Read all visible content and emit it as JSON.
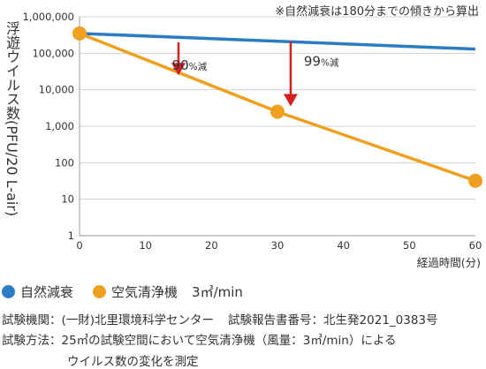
{
  "note": "※自然減衰は180分までの傾きから算出",
  "chart_data": {
    "type": "line",
    "x_ticks": [
      0,
      10,
      20,
      30,
      40,
      50,
      60
    ],
    "y_ticks": [
      1,
      10,
      100,
      1000,
      10000,
      100000,
      1000000
    ],
    "y_tick_labels": [
      "1",
      "10",
      "100",
      "1,000",
      "10,000",
      "100,000",
      "1,000,000"
    ],
    "y_scale": "log",
    "xlim": [
      0,
      60
    ],
    "ylim": [
      1,
      1000000
    ],
    "xlabel": "経過時間(分)",
    "ylabel": "浮遊ウイルス数(PFU/20 L-air)",
    "grid": "horizontal",
    "series": [
      {
        "name": "自然減衰",
        "color": "#2b7cc4",
        "x": [
          0,
          60
        ],
        "y": [
          350000,
          130000
        ]
      },
      {
        "name": "空気清浄機",
        "color": "#f0a020",
        "x": [
          0,
          30,
          60
        ],
        "y": [
          350000,
          2500,
          32
        ]
      }
    ],
    "annotations": [
      {
        "label": "90",
        "suffix": "%減",
        "x": 15,
        "from": 200000,
        "to": 25000,
        "text_x": 14,
        "text_y": 35000
      },
      {
        "label": "99",
        "suffix": "%減",
        "x": 32,
        "from": 210000,
        "to": 3500,
        "text_x": 34,
        "text_y": 45000
      }
    ],
    "arrow_color": "#d42020"
  },
  "legend": {
    "series1": "自然減衰",
    "series2": "空気清浄機",
    "unit": "3㎥/min"
  },
  "footer": {
    "line1a": "試験機関：(一財)北里環境科学センター",
    "line1b": "試験報告書番号：北生発2021_0383号",
    "line2": "試験方法：25㎥の試験空間において空気清浄機（風量：3㎥/min）による",
    "line3": "ウイルス数の変化を測定"
  }
}
